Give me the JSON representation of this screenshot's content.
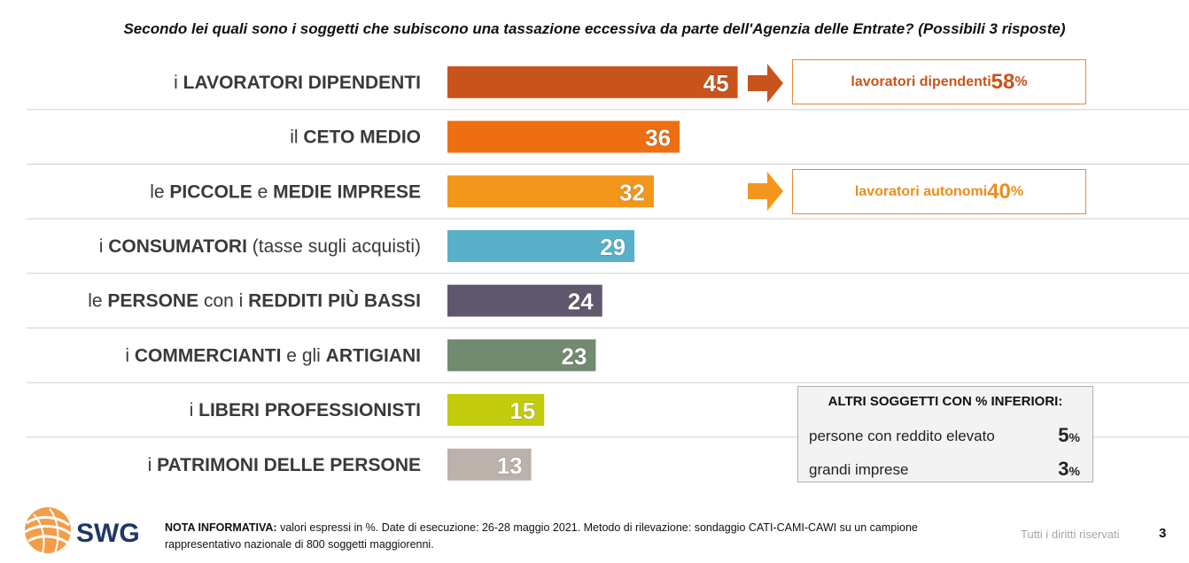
{
  "title": "Secondo lei quali sono i soggetti che subiscono una tassazione eccessiva da parte dell'Agenzia delle Entrate? (Possibili 3 risposte)",
  "chart_data": {
    "type": "bar",
    "orientation": "horizontal",
    "title": "Secondo lei quali sono i soggetti che subiscono una tassazione eccessiva da parte dell'Agenzia delle Entrate? (Possibili 3 risposte)",
    "xlim": [
      0,
      100
    ],
    "grid": false,
    "legend": "none",
    "categories": [
      "i LAVORATORI DIPENDENTI",
      "il CETO MEDIO",
      "le PICCOLE e MEDIE IMPRESE",
      "i CONSUMATORI (tasse sugli acquisti)",
      "le PERSONE con i REDDITI PIÙ BASSI",
      "i COMMERCIANTI e gli ARTIGIANI",
      "i LIBERI PROFESSIONISTI",
      "i PATRIMONI DELLE PERSONE"
    ],
    "label_parts": [
      [
        [
          "i ",
          false
        ],
        [
          "LAVORATORI DIPENDENTI",
          true
        ]
      ],
      [
        [
          "il ",
          false
        ],
        [
          "CETO MEDIO",
          true
        ]
      ],
      [
        [
          "le ",
          false
        ],
        [
          "PICCOLE",
          true
        ],
        [
          " e ",
          false
        ],
        [
          "MEDIE IMPRESE",
          true
        ]
      ],
      [
        [
          "i ",
          false
        ],
        [
          "CONSUMATORI",
          true
        ],
        [
          " (tasse sugli acquisti)",
          false
        ]
      ],
      [
        [
          "le ",
          false
        ],
        [
          "PERSONE",
          true
        ],
        [
          " con i ",
          false
        ],
        [
          "REDDITI PIÙ BASSI",
          true
        ]
      ],
      [
        [
          "i ",
          false
        ],
        [
          "COMMERCIANTI",
          true
        ],
        [
          " e gli ",
          false
        ],
        [
          "ARTIGIANI",
          true
        ]
      ],
      [
        [
          "i ",
          false
        ],
        [
          "LIBERI PROFESSIONISTI",
          true
        ]
      ],
      [
        [
          "i ",
          false
        ],
        [
          "PATRIMONI DELLE PERSONE",
          true
        ]
      ]
    ],
    "values": [
      45,
      36,
      32,
      29,
      24,
      23,
      15,
      13
    ],
    "colors": [
      "#c9541b",
      "#ee6e14",
      "#f3961c",
      "#58b0c9",
      "#5f576b",
      "#718a70",
      "#c2cc0c",
      "#bcb2ab"
    ]
  },
  "callouts": [
    {
      "text": "lavoratori dipendenti ",
      "value": "58",
      "unit": "%",
      "color": "#c9541b"
    },
    {
      "text": "lavoratori autonomi ",
      "value": "40",
      "unit": "%",
      "color": "#ee8c1c"
    }
  ],
  "others": {
    "title": "ALTRI SOGGETTI CON % INFERIORI:",
    "items": [
      {
        "label": "persone con reddito elevato",
        "value": "5",
        "unit": "%"
      },
      {
        "label": "grandi imprese",
        "value": "3",
        "unit": "%"
      }
    ]
  },
  "logo": {
    "text": "SWG",
    "color": "#1f3764",
    "accent": "#f08c2b"
  },
  "note": {
    "bold": "NOTA INFORMATIVA:",
    "text": " valori espressi in %. Date di esecuzione: 26-28 maggio 2021. Metodo di rilevazione: sondaggio CATI-CAMI-CAWI su un campione rappresentativo nazionale di 800 soggetti maggiorenni."
  },
  "footer": {
    "rights": "Tutti i diritti riservati",
    "page": "3"
  }
}
